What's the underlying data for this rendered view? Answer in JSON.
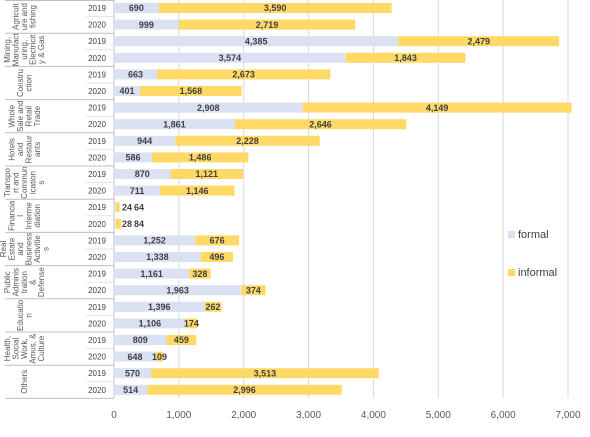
{
  "chart_data": {
    "type": "bar",
    "orientation": "horizontal",
    "stacked": true,
    "xlim": [
      0,
      7000
    ],
    "xticks": [
      "0",
      "1,000",
      "2,000",
      "3,000",
      "4,000",
      "5,000",
      "6,000",
      "7,000"
    ],
    "grid": true,
    "legend_position": "right",
    "series": [
      {
        "name": "formal",
        "color": "#d9e1f2"
      },
      {
        "name": "informal",
        "color": "#ffd966"
      }
    ],
    "groups": [
      {
        "label": [
          "Agricult",
          "ure and",
          "fishing"
        ],
        "rows": [
          {
            "year": "2019",
            "formal": 690,
            "formal_label": "690",
            "informal": 3590,
            "informal_label": "3,590"
          },
          {
            "year": "2020",
            "formal": 999,
            "formal_label": "999",
            "informal": 2719,
            "informal_label": "2,719"
          }
        ]
      },
      {
        "label": [
          "Mining,",
          "Manufact",
          "uring,",
          "Electricit",
          "y & Gas"
        ],
        "rows": [
          {
            "year": "2019",
            "formal": 4385,
            "formal_label": "4,385",
            "informal": 2479,
            "informal_label": "2,479"
          },
          {
            "year": "2020",
            "formal": 3574,
            "formal_label": "3,574",
            "informal": 1843,
            "informal_label": "1,843"
          }
        ]
      },
      {
        "label": [
          "Constru",
          "ction"
        ],
        "rows": [
          {
            "year": "2019",
            "formal": 663,
            "formal_label": "663",
            "informal": 2673,
            "informal_label": "2,673"
          },
          {
            "year": "2020",
            "formal": 401,
            "formal_label": "401",
            "informal": 1568,
            "informal_label": "1,568"
          }
        ]
      },
      {
        "label": [
          "Whole",
          "Sale and",
          "Retail",
          "Trade"
        ],
        "rows": [
          {
            "year": "2019",
            "formal": 2908,
            "formal_label": "2,908",
            "informal": 4149,
            "informal_label": "4,149"
          },
          {
            "year": "2020",
            "formal": 1861,
            "formal_label": "1,861",
            "informal": 2646,
            "informal_label": "2,646"
          }
        ]
      },
      {
        "label": [
          "Hotels",
          "and",
          "Restaur",
          "ants"
        ],
        "rows": [
          {
            "year": "2019",
            "formal": 944,
            "formal_label": "944",
            "informal": 2228,
            "informal_label": "2,228"
          },
          {
            "year": "2020",
            "formal": 586,
            "formal_label": "586",
            "informal": 1486,
            "informal_label": "1,486"
          }
        ]
      },
      {
        "label": [
          "Transpo",
          "rt and",
          "Commun",
          "ication",
          "s"
        ],
        "rows": [
          {
            "year": "2019",
            "formal": 870,
            "formal_label": "870",
            "informal": 1121,
            "informal_label": "1,121"
          },
          {
            "year": "2020",
            "formal": 711,
            "formal_label": "711",
            "informal": 1146,
            "informal_label": "1,146"
          }
        ]
      },
      {
        "label": [
          "Financia",
          "l",
          "Interme",
          "diation"
        ],
        "rows": [
          {
            "year": "2019",
            "formal": 24,
            "formal_label": "24",
            "informal": 64,
            "informal_label": "64"
          },
          {
            "year": "2020",
            "formal": 28,
            "formal_label": "28",
            "informal": 84,
            "informal_label": "84"
          }
        ]
      },
      {
        "label": [
          "Real",
          "Estate",
          "and",
          "Business",
          "Activitie",
          "s"
        ],
        "rows": [
          {
            "year": "2019",
            "formal": 1252,
            "formal_label": "1,252",
            "informal": 676,
            "informal_label": "676"
          },
          {
            "year": "2020",
            "formal": 1338,
            "formal_label": "1,338",
            "informal": 496,
            "informal_label": "496"
          }
        ]
      },
      {
        "label": [
          "Public",
          "Adminis",
          "tration",
          "&",
          "Defense"
        ],
        "rows": [
          {
            "year": "2019",
            "formal": 1161,
            "formal_label": "1,161",
            "informal": 328,
            "informal_label": "328"
          },
          {
            "year": "2020",
            "formal": 1963,
            "formal_label": "1,963",
            "informal": 374,
            "informal_label": "374"
          }
        ]
      },
      {
        "label": [
          "Educatio",
          "n"
        ],
        "rows": [
          {
            "year": "2019",
            "formal": 1396,
            "formal_label": "1,396",
            "informal": 262,
            "informal_label": "262"
          },
          {
            "year": "2020",
            "formal": 1106,
            "formal_label": "1,106",
            "informal": 174,
            "informal_label": "174"
          }
        ]
      },
      {
        "label": [
          "Health,",
          "Social",
          "Work,",
          "Amus, &",
          "Culture"
        ],
        "rows": [
          {
            "year": "2019",
            "formal": 809,
            "formal_label": "809",
            "informal": 459,
            "informal_label": "459"
          },
          {
            "year": "2020",
            "formal": 648,
            "formal_label": "648",
            "informal": 109,
            "informal_label": "109"
          }
        ]
      },
      {
        "label": [
          "Others"
        ],
        "rows": [
          {
            "year": "2019",
            "formal": 570,
            "formal_label": "570",
            "informal": 3513,
            "informal_label": "3,513"
          },
          {
            "year": "2020",
            "formal": 514,
            "formal_label": "514",
            "informal": 2996,
            "informal_label": "2,996"
          }
        ]
      }
    ]
  }
}
